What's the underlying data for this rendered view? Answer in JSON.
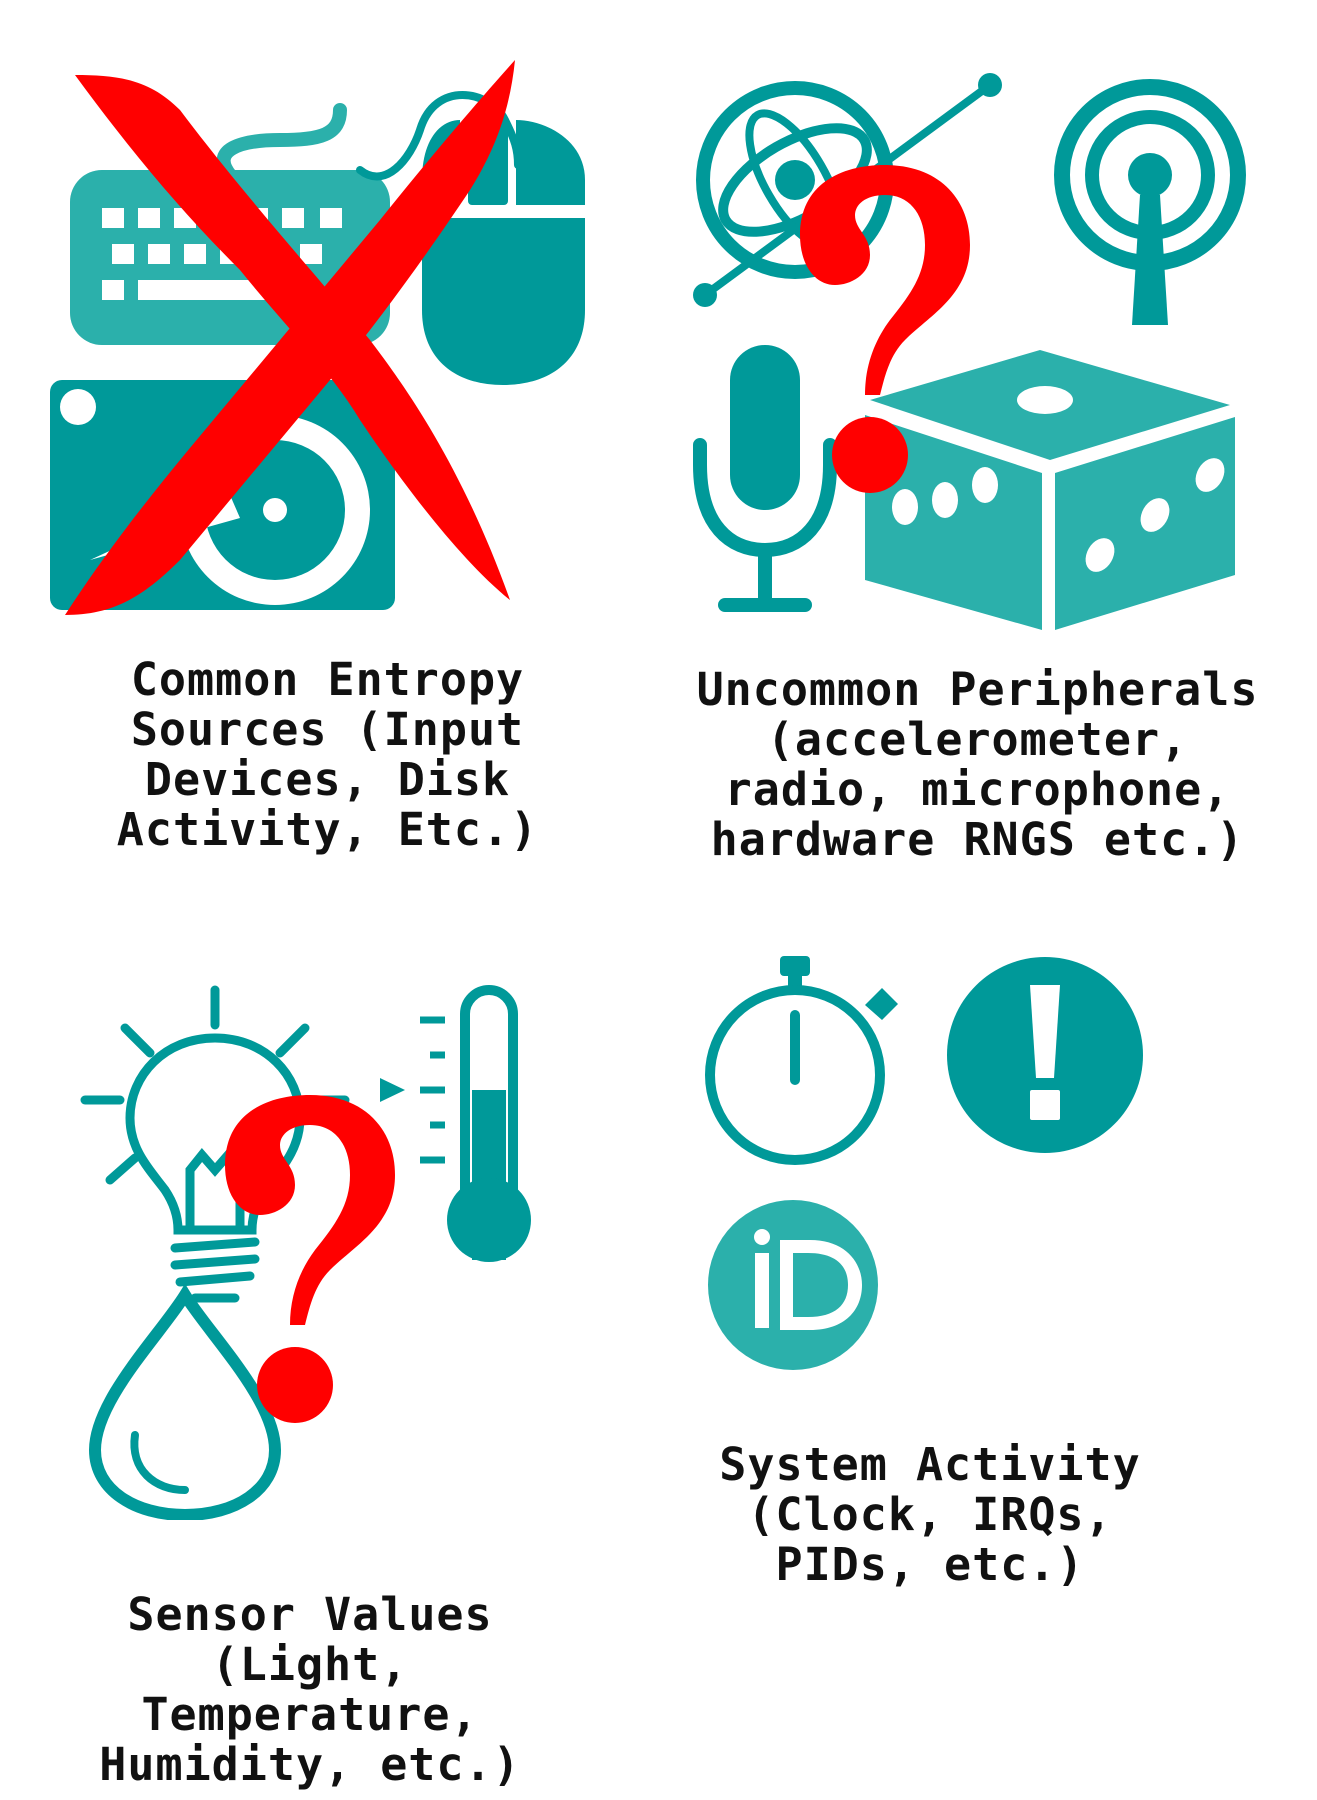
{
  "colors": {
    "teal": "#009999",
    "teal_light": "#2bb0ab",
    "red": "#ff0000",
    "text": "#111111"
  },
  "quadrants": {
    "common": {
      "icons": [
        "keyboard-icon",
        "mouse-icon",
        "hard-drive-icon",
        "red-cross-icon"
      ],
      "caption_lines": [
        "Common Entropy",
        "Sources (Input",
        "Devices, Disk",
        "Activity, Etc.)"
      ]
    },
    "uncommon": {
      "icons": [
        "accelerometer-icon",
        "radio-icon",
        "microphone-icon",
        "dice-icon",
        "question-mark-icon"
      ],
      "caption_lines": [
        "Uncommon Peripherals",
        "(accelerometer,",
        "radio, microphone,",
        "hardware RNGS etc.)"
      ]
    },
    "sensor": {
      "icons": [
        "lightbulb-icon",
        "thermometer-icon",
        "water-drop-icon",
        "question-mark-icon"
      ],
      "caption_lines": [
        "Sensor Values",
        "(Light,",
        "Temperature,",
        "Humidity, etc.)"
      ]
    },
    "system": {
      "icons": [
        "stopwatch-icon",
        "exclamation-icon",
        "id-icon"
      ],
      "caption_lines": [
        "System Activity",
        "(Clock, IRQs,",
        "PIDs, etc.)"
      ]
    }
  }
}
